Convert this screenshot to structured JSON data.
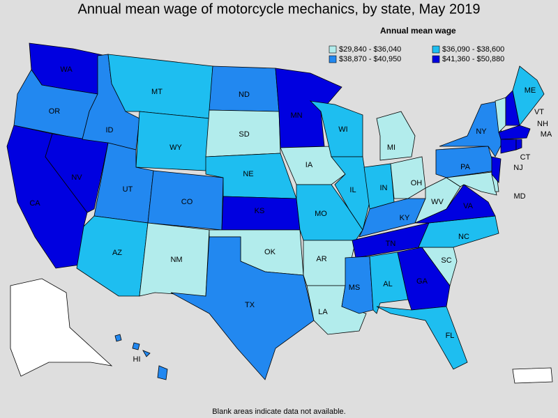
{
  "title": "Annual mean wage of motorcycle mechanics, by state, May 2019",
  "legend": {
    "title": "Annual mean wage",
    "items": [
      {
        "label": "$29,840 - $36,040",
        "color": "#b2ecec"
      },
      {
        "label": "$36,090 - $38,600",
        "color": "#1ebef0"
      },
      {
        "label": "$38,870 - $40,950",
        "color": "#2288f0"
      },
      {
        "label": "$41,360 - $50,880",
        "color": "#0000e0"
      }
    ]
  },
  "states": [
    {
      "abbr": "WA",
      "color": "#0000e0"
    },
    {
      "abbr": "OR",
      "color": "#2288f0"
    },
    {
      "abbr": "CA",
      "color": "#0000e0"
    },
    {
      "abbr": "NV",
      "color": "#0000e0"
    },
    {
      "abbr": "ID",
      "color": "#2288f0"
    },
    {
      "abbr": "MT",
      "color": "#1ebef0"
    },
    {
      "abbr": "WY",
      "color": "#1ebef0"
    },
    {
      "abbr": "UT",
      "color": "#2288f0"
    },
    {
      "abbr": "AZ",
      "color": "#1ebef0"
    },
    {
      "abbr": "CO",
      "color": "#2288f0"
    },
    {
      "abbr": "NM",
      "color": "#b2ecec"
    },
    {
      "abbr": "ND",
      "color": "#2288f0"
    },
    {
      "abbr": "SD",
      "color": "#b2ecec"
    },
    {
      "abbr": "NE",
      "color": "#1ebef0"
    },
    {
      "abbr": "KS",
      "color": "#0000e0"
    },
    {
      "abbr": "OK",
      "color": "#b2ecec"
    },
    {
      "abbr": "TX",
      "color": "#2288f0"
    },
    {
      "abbr": "MN",
      "color": "#0000e0"
    },
    {
      "abbr": "IA",
      "color": "#b2ecec"
    },
    {
      "abbr": "MO",
      "color": "#1ebef0"
    },
    {
      "abbr": "AR",
      "color": "#b2ecec"
    },
    {
      "abbr": "LA",
      "color": "#b2ecec"
    },
    {
      "abbr": "WI",
      "color": "#1ebef0"
    },
    {
      "abbr": "IL",
      "color": "#1ebef0"
    },
    {
      "abbr": "MI",
      "color": "#b2ecec"
    },
    {
      "abbr": "IN",
      "color": "#1ebef0"
    },
    {
      "abbr": "OH",
      "color": "#b2ecec"
    },
    {
      "abbr": "KY",
      "color": "#2288f0"
    },
    {
      "abbr": "TN",
      "color": "#0000e0"
    },
    {
      "abbr": "MS",
      "color": "#2288f0"
    },
    {
      "abbr": "AL",
      "color": "#1ebef0"
    },
    {
      "abbr": "GA",
      "color": "#0000e0"
    },
    {
      "abbr": "FL",
      "color": "#1ebef0"
    },
    {
      "abbr": "SC",
      "color": "#b2ecec"
    },
    {
      "abbr": "NC",
      "color": "#1ebef0"
    },
    {
      "abbr": "VA",
      "color": "#0000e0"
    },
    {
      "abbr": "WV",
      "color": "#b2ecec"
    },
    {
      "abbr": "PA",
      "color": "#2288f0"
    },
    {
      "abbr": "NY",
      "color": "#2288f0"
    },
    {
      "abbr": "MD",
      "color": "#b2ecec"
    },
    {
      "abbr": null,
      "color": "#b2ecec"
    },
    {
      "abbr": "NJ",
      "color": "#0000e0"
    },
    {
      "abbr": "VT",
      "color": "#b2ecec"
    },
    {
      "abbr": "NH",
      "color": "#0000e0"
    },
    {
      "abbr": "ME",
      "color": "#1ebef0"
    },
    {
      "abbr": "MA",
      "color": "#0000e0"
    },
    {
      "abbr": "CT",
      "color": "#0000e0"
    },
    {
      "abbr": null,
      "color": "#0000e0"
    },
    {
      "abbr": "HI",
      "color": "#2288f0"
    }
  ],
  "footnote": "Blank areas indicate data not available."
}
